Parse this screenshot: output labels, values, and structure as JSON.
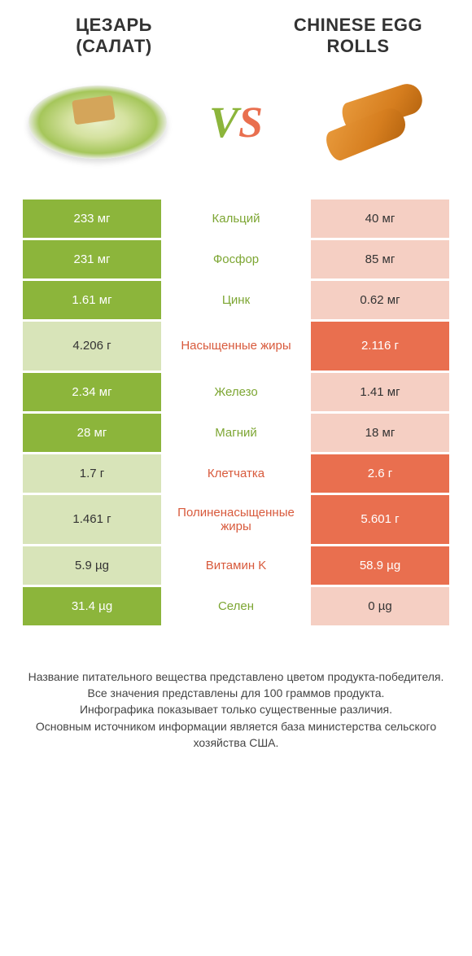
{
  "colors": {
    "green_strong": "#8cb53b",
    "green_light": "#d8e4b9",
    "orange_strong": "#e96f4f",
    "orange_light": "#f5cfc3",
    "text_green": "#7da633",
    "text_orange": "#d85a3c",
    "background": "#ffffff"
  },
  "left_title_line1": "ЦЕЗАРЬ",
  "left_title_line2": "(САЛАТ)",
  "right_title_line1": "CHINESE EGG",
  "right_title_line2": "ROLLS",
  "vs_v": "V",
  "vs_s": "S",
  "rows": [
    {
      "left": "233 мг",
      "mid": "Кальций",
      "right": "40 мг",
      "winner": "left",
      "tall": false
    },
    {
      "left": "231 мг",
      "mid": "Фосфор",
      "right": "85 мг",
      "winner": "left",
      "tall": false
    },
    {
      "left": "1.61 мг",
      "mid": "Цинк",
      "right": "0.62 мг",
      "winner": "left",
      "tall": false
    },
    {
      "left": "4.206 г",
      "mid": "Насыщенные жиры",
      "right": "2.116 г",
      "winner": "right",
      "tall": true
    },
    {
      "left": "2.34 мг",
      "mid": "Железо",
      "right": "1.41 мг",
      "winner": "left",
      "tall": false
    },
    {
      "left": "28 мг",
      "mid": "Магний",
      "right": "18 мг",
      "winner": "left",
      "tall": false
    },
    {
      "left": "1.7 г",
      "mid": "Клетчатка",
      "right": "2.6 г",
      "winner": "right",
      "tall": false
    },
    {
      "left": "1.461 г",
      "mid": "Полиненасыщенные жиры",
      "right": "5.601 г",
      "winner": "right",
      "tall": true
    },
    {
      "left": "5.9 µg",
      "mid": "Витамин K",
      "right": "58.9 µg",
      "winner": "right",
      "tall": false
    },
    {
      "left": "31.4 µg",
      "mid": "Селен",
      "right": "0 µg",
      "winner": "left",
      "tall": false
    }
  ],
  "footer_lines": [
    "Название питательного вещества представлено цветом продукта-победителя.",
    "Все значения представлены для 100 граммов продукта.",
    "Инфографика показывает только существенные различия.",
    "Основным источником информации является база министерства сельского хозяйства США."
  ]
}
